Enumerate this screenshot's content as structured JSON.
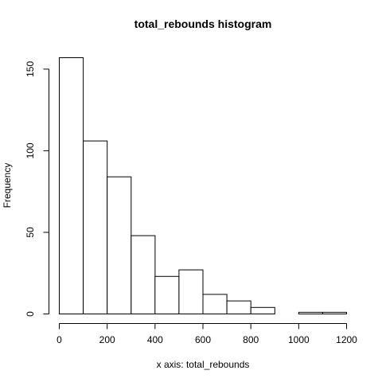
{
  "chart_data": {
    "type": "bar",
    "title": "total_rebounds histogram",
    "xlabel": "x axis: total_rebounds",
    "ylabel": "Frequency",
    "bins": [
      {
        "start": 0,
        "end": 100,
        "count": 157
      },
      {
        "start": 100,
        "end": 200,
        "count": 106
      },
      {
        "start": 200,
        "end": 300,
        "count": 84
      },
      {
        "start": 300,
        "end": 400,
        "count": 48
      },
      {
        "start": 400,
        "end": 500,
        "count": 23
      },
      {
        "start": 500,
        "end": 600,
        "count": 27
      },
      {
        "start": 600,
        "end": 700,
        "count": 12
      },
      {
        "start": 700,
        "end": 800,
        "count": 8
      },
      {
        "start": 800,
        "end": 900,
        "count": 4
      },
      {
        "start": 900,
        "end": 1000,
        "count": 0
      },
      {
        "start": 1000,
        "end": 1100,
        "count": 1
      },
      {
        "start": 1100,
        "end": 1200,
        "count": 1
      }
    ],
    "xticks": [
      "0",
      "200",
      "400",
      "600",
      "800",
      "1000",
      "1200"
    ],
    "yticks": [
      "0",
      "50",
      "100",
      "150"
    ],
    "xlim": [
      0,
      1200
    ],
    "ylim": [
      0,
      157
    ],
    "grid": false,
    "legend": "none"
  }
}
